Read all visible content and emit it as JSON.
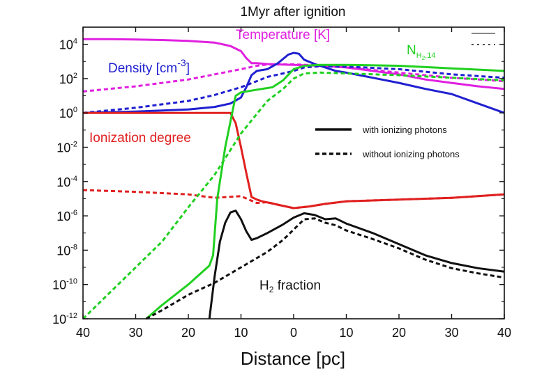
{
  "chart_data": {
    "type": "line",
    "title": "1Myr after ignition",
    "xlabel": "Distance [pc]",
    "ylabel": "",
    "x_scale": "mirrored-distance",
    "y_scale": "log10",
    "xlim": [
      -40,
      40
    ],
    "ylim_log10": [
      -12,
      5
    ],
    "x_ticks": [
      -40,
      -30,
      -20,
      -10,
      0,
      10,
      20,
      30,
      40
    ],
    "x_tick_labels": [
      "40",
      "30",
      "20",
      "10",
      "0",
      "10",
      "20",
      "30",
      "40"
    ],
    "y_ticks_log10": [
      4,
      2,
      0,
      -2,
      -4,
      -6,
      -8,
      -10,
      -12
    ],
    "y_tick_base": "10",
    "y_tick_exponents": [
      "4",
      "2",
      "0",
      "-2",
      "-4",
      "-6",
      "-8",
      "-10",
      "-12"
    ],
    "annotations": {
      "temperature": "Temperature [K]",
      "density_prefix": "Density [cm",
      "density_exp": "-3",
      "density_suffix": "]",
      "nh2_main": "N",
      "nh2_sub": "H",
      "nh2_sub2": "2",
      "nh2_sub3": ",14",
      "ionization": "Ionization degree",
      "h2_prefix": "H",
      "h2_sub": "2",
      "h2_suffix": " fraction"
    },
    "legend": {
      "placement": "center-right",
      "entries": [
        {
          "label": "with ionizing photons",
          "style": "solid"
        },
        {
          "label": "without ionizing photons",
          "style": "dashed"
        }
      ]
    },
    "series": [
      {
        "key": "temp_with",
        "color": "#e020e0",
        "dash": false,
        "x": [
          -40,
          -35,
          -30,
          -25,
          -20,
          -15,
          -12,
          -10,
          -9,
          -8,
          -7,
          -5,
          0,
          5,
          10,
          15,
          20,
          25,
          30,
          35,
          40
        ],
        "log_y": [
          4.3,
          4.3,
          4.28,
          4.25,
          4.2,
          4.1,
          3.9,
          3.6,
          3.2,
          2.9,
          2.9,
          2.85,
          2.8,
          2.75,
          2.65,
          2.45,
          2.25,
          1.95,
          1.75,
          1.55,
          1.4
        ]
      },
      {
        "key": "temp_without",
        "color": "#e020e0",
        "dash": true,
        "x": [
          -40,
          -30,
          -20,
          -15,
          -10,
          -7,
          -5,
          0,
          5,
          10,
          20,
          30,
          40
        ],
        "log_y": [
          1.25,
          1.55,
          1.95,
          2.25,
          2.55,
          2.75,
          2.82,
          2.83,
          2.77,
          2.65,
          2.35,
          2.05,
          1.85
        ]
      },
      {
        "key": "dens_with",
        "color": "#2020d0",
        "dash": false,
        "x": [
          -40,
          -30,
          -20,
          -15,
          -12,
          -10,
          -9,
          -8,
          -7,
          -5,
          -3,
          -1,
          0,
          1,
          2,
          4,
          6,
          8,
          10,
          15,
          20,
          25,
          30,
          35,
          40
        ],
        "log_y": [
          0.0,
          0.08,
          0.2,
          0.35,
          0.55,
          0.9,
          1.5,
          2.2,
          2.45,
          2.55,
          2.9,
          3.4,
          3.5,
          3.45,
          3.1,
          2.85,
          2.65,
          2.45,
          2.35,
          2.05,
          1.75,
          1.4,
          1.1,
          0.55,
          0.0
        ]
      },
      {
        "key": "dens_without",
        "color": "#2020d0",
        "dash": true,
        "x": [
          -40,
          -30,
          -20,
          -15,
          -10,
          -7,
          -5,
          -2,
          0,
          2,
          5,
          10,
          20,
          30,
          40
        ],
        "log_y": [
          0.0,
          0.3,
          0.7,
          1.05,
          1.5,
          1.85,
          2.1,
          2.3,
          2.45,
          2.65,
          2.72,
          2.7,
          2.55,
          2.25,
          2.05
        ]
      },
      {
        "key": "ion_with",
        "color": "#e02020",
        "dash": false,
        "x": [
          -40,
          -30,
          -20,
          -15,
          -12,
          -11,
          -10,
          -9,
          -8,
          -7,
          -6,
          -3,
          0,
          3,
          6,
          10,
          20,
          30,
          40
        ],
        "log_y": [
          0.0,
          0.0,
          0.0,
          0.0,
          0.0,
          -0.6,
          -2.0,
          -3.5,
          -4.9,
          -5.05,
          -5.15,
          -5.35,
          -5.55,
          -5.45,
          -5.3,
          -5.15,
          -5.05,
          -4.95,
          -4.75
        ]
      },
      {
        "key": "ion_without",
        "color": "#e02020",
        "dash": true,
        "x": [
          -40,
          -30,
          -20,
          -15,
          -10,
          -7,
          -5,
          -3,
          0,
          3,
          6,
          10,
          20,
          30,
          40
        ],
        "log_y": [
          -4.5,
          -4.6,
          -4.75,
          -4.95,
          -4.85,
          -5.25,
          -5.2,
          -5.35,
          -5.55,
          -5.45,
          -5.3,
          -5.15,
          -5.05,
          -4.95,
          -4.75
        ]
      },
      {
        "key": "nh2_with",
        "color": "#20d020",
        "dash": false,
        "x": [
          -28,
          -25,
          -20,
          -16,
          -15.3,
          -14.5,
          -13,
          -12,
          -11,
          -10,
          -8,
          -6,
          -4,
          -2,
          0,
          2,
          5,
          10,
          20,
          30,
          40
        ],
        "log_y": [
          -12,
          -11.2,
          -10.0,
          -8.9,
          -8.3,
          -5.0,
          -2.0,
          -0.5,
          1.0,
          1.2,
          1.3,
          1.4,
          1.5,
          1.9,
          2.55,
          2.75,
          2.8,
          2.8,
          2.75,
          2.6,
          2.45
        ]
      },
      {
        "key": "nh2_without",
        "color": "#20d020",
        "dash": true,
        "x": [
          -40,
          -35,
          -30,
          -25,
          -20,
          -15,
          -10,
          -5,
          -2,
          0,
          2,
          5,
          10,
          20,
          30,
          40
        ],
        "log_y": [
          -12.0,
          -10.5,
          -9.0,
          -7.5,
          -5.5,
          -3.6,
          -1.2,
          0.7,
          1.4,
          2.0,
          2.3,
          2.35,
          2.3,
          2.2,
          2.05,
          1.9
        ]
      },
      {
        "key": "h2_with",
        "color": "#111111",
        "dash": false,
        "x": [
          -16,
          -15,
          -14,
          -13,
          -12,
          -11,
          -10,
          -9,
          -8,
          -7,
          -5,
          -2,
          0,
          2,
          4,
          6,
          8,
          10,
          15,
          20,
          25,
          30,
          35,
          40
        ],
        "log_y": [
          -12.0,
          -9.5,
          -7.5,
          -6.4,
          -5.8,
          -5.7,
          -6.2,
          -6.9,
          -7.4,
          -7.3,
          -7.0,
          -6.5,
          -6.1,
          -5.85,
          -5.95,
          -6.2,
          -6.15,
          -6.45,
          -7.0,
          -7.65,
          -8.3,
          -8.75,
          -9.05,
          -9.25
        ]
      },
      {
        "key": "h2_without",
        "color": "#111111",
        "dash": true,
        "x": [
          -28,
          -25,
          -20,
          -15,
          -10,
          -5,
          -2,
          0,
          2,
          4,
          6,
          8,
          10,
          15,
          20,
          25,
          30,
          35,
          40
        ],
        "log_y": [
          -12.0,
          -11.5,
          -10.6,
          -9.9,
          -9.0,
          -8.1,
          -7.4,
          -6.8,
          -6.2,
          -6.15,
          -6.4,
          -6.55,
          -6.85,
          -7.35,
          -7.9,
          -8.55,
          -9.05,
          -9.35,
          -9.6
        ]
      }
    ]
  }
}
